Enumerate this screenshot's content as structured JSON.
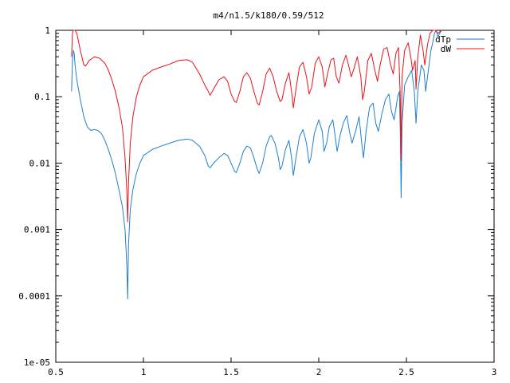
{
  "chart_data": {
    "type": "line",
    "title": "m4/n1.5/k180/0.59/512",
    "xlabel": "",
    "ylabel": "",
    "xlim": [
      0.5,
      3
    ],
    "ylim": [
      1e-05,
      1
    ],
    "yscale": "log",
    "grid": false,
    "legend_position": "top-right",
    "x_ticks": [
      0.5,
      1,
      1.5,
      2,
      2.5,
      3
    ],
    "x_tick_labels": [
      "0.5",
      "1",
      "1.5",
      "2",
      "2.5",
      "3"
    ],
    "y_ticks": [
      1e-05,
      0.0001,
      0.001,
      0.01,
      0.1,
      1
    ],
    "y_tick_labels": [
      "1e-05",
      "0.0001",
      "0.001",
      "0.01",
      "0.1",
      "1"
    ],
    "series": [
      {
        "name": "dTp",
        "color": "#1f7fce",
        "points": [
          [
            0.59,
            0.12
          ],
          [
            0.595,
            0.35
          ],
          [
            0.6,
            0.5
          ],
          [
            0.605,
            0.45
          ],
          [
            0.61,
            0.3
          ],
          [
            0.62,
            0.18
          ],
          [
            0.64,
            0.09
          ],
          [
            0.66,
            0.05
          ],
          [
            0.68,
            0.035
          ],
          [
            0.7,
            0.031
          ],
          [
            0.72,
            0.032
          ],
          [
            0.74,
            0.031
          ],
          [
            0.76,
            0.028
          ],
          [
            0.78,
            0.022
          ],
          [
            0.8,
            0.016
          ],
          [
            0.82,
            0.011
          ],
          [
            0.84,
            0.007
          ],
          [
            0.86,
            0.004
          ],
          [
            0.88,
            0.0022
          ],
          [
            0.895,
            0.001
          ],
          [
            0.905,
            0.0003
          ],
          [
            0.91,
            9e-05
          ],
          [
            0.915,
            0.0006
          ],
          [
            0.925,
            0.002
          ],
          [
            0.94,
            0.004
          ],
          [
            0.96,
            0.007
          ],
          [
            0.98,
            0.01
          ],
          [
            1.0,
            0.013
          ],
          [
            1.05,
            0.016
          ],
          [
            1.1,
            0.018
          ],
          [
            1.15,
            0.02
          ],
          [
            1.2,
            0.022
          ],
          [
            1.25,
            0.023
          ],
          [
            1.28,
            0.022
          ],
          [
            1.32,
            0.018
          ],
          [
            1.35,
            0.013
          ],
          [
            1.37,
            0.009
          ],
          [
            1.38,
            0.0085
          ],
          [
            1.4,
            0.01
          ],
          [
            1.43,
            0.012
          ],
          [
            1.46,
            0.014
          ],
          [
            1.48,
            0.013
          ],
          [
            1.5,
            0.01
          ],
          [
            1.52,
            0.0075
          ],
          [
            1.53,
            0.0072
          ],
          [
            1.55,
            0.01
          ],
          [
            1.57,
            0.015
          ],
          [
            1.59,
            0.018
          ],
          [
            1.61,
            0.017
          ],
          [
            1.63,
            0.012
          ],
          [
            1.65,
            0.008
          ],
          [
            1.66,
            0.007
          ],
          [
            1.68,
            0.01
          ],
          [
            1.7,
            0.018
          ],
          [
            1.72,
            0.025
          ],
          [
            1.73,
            0.026
          ],
          [
            1.75,
            0.02
          ],
          [
            1.77,
            0.012
          ],
          [
            1.78,
            0.008
          ],
          [
            1.79,
            0.009
          ],
          [
            1.81,
            0.016
          ],
          [
            1.83,
            0.022
          ],
          [
            1.845,
            0.012
          ],
          [
            1.855,
            0.0065
          ],
          [
            1.87,
            0.012
          ],
          [
            1.89,
            0.025
          ],
          [
            1.91,
            0.032
          ],
          [
            1.93,
            0.02
          ],
          [
            1.945,
            0.01
          ],
          [
            1.955,
            0.012
          ],
          [
            1.975,
            0.028
          ],
          [
            2.0,
            0.045
          ],
          [
            2.02,
            0.03
          ],
          [
            2.03,
            0.015
          ],
          [
            2.045,
            0.02
          ],
          [
            2.06,
            0.035
          ],
          [
            2.08,
            0.045
          ],
          [
            2.09,
            0.03
          ],
          [
            2.105,
            0.015
          ],
          [
            2.12,
            0.025
          ],
          [
            2.14,
            0.04
          ],
          [
            2.16,
            0.052
          ],
          [
            2.175,
            0.03
          ],
          [
            2.19,
            0.02
          ],
          [
            2.21,
            0.03
          ],
          [
            2.23,
            0.05
          ],
          [
            2.245,
            0.02
          ],
          [
            2.255,
            0.012
          ],
          [
            2.27,
            0.03
          ],
          [
            2.29,
            0.07
          ],
          [
            2.31,
            0.08
          ],
          [
            2.325,
            0.04
          ],
          [
            2.34,
            0.03
          ],
          [
            2.36,
            0.055
          ],
          [
            2.38,
            0.09
          ],
          [
            2.4,
            0.11
          ],
          [
            2.415,
            0.06
          ],
          [
            2.43,
            0.045
          ],
          [
            2.45,
            0.1
          ],
          [
            2.46,
            0.12
          ],
          [
            2.465,
            0.03
          ],
          [
            2.47,
            0.003
          ],
          [
            2.475,
            0.04
          ],
          [
            2.49,
            0.15
          ],
          [
            2.51,
            0.2
          ],
          [
            2.53,
            0.25
          ],
          [
            2.545,
            0.12
          ],
          [
            2.555,
            0.04
          ],
          [
            2.565,
            0.12
          ],
          [
            2.585,
            0.3
          ],
          [
            2.6,
            0.25
          ],
          [
            2.61,
            0.12
          ],
          [
            2.625,
            0.25
          ],
          [
            2.64,
            0.5
          ],
          [
            2.65,
            0.65
          ],
          [
            2.66,
            0.9
          ],
          [
            2.67,
            1.0
          ],
          [
            2.68,
            0.8
          ],
          [
            2.69,
            0.9
          ],
          [
            2.7,
            1.0
          ]
        ]
      },
      {
        "name": "dW",
        "color": "#e8121a",
        "points": [
          [
            0.59,
            0.4
          ],
          [
            0.595,
            0.9
          ],
          [
            0.6,
            1.0
          ],
          [
            0.61,
            1.0
          ],
          [
            0.62,
            0.9
          ],
          [
            0.64,
            0.5
          ],
          [
            0.66,
            0.3
          ],
          [
            0.67,
            0.29
          ],
          [
            0.69,
            0.35
          ],
          [
            0.72,
            0.4
          ],
          [
            0.75,
            0.38
          ],
          [
            0.78,
            0.32
          ],
          [
            0.8,
            0.25
          ],
          [
            0.82,
            0.18
          ],
          [
            0.84,
            0.12
          ],
          [
            0.86,
            0.07
          ],
          [
            0.88,
            0.035
          ],
          [
            0.895,
            0.012
          ],
          [
            0.905,
            0.004
          ],
          [
            0.91,
            0.0013
          ],
          [
            0.915,
            0.005
          ],
          [
            0.925,
            0.02
          ],
          [
            0.94,
            0.05
          ],
          [
            0.96,
            0.1
          ],
          [
            0.98,
            0.15
          ],
          [
            1.0,
            0.2
          ],
          [
            1.05,
            0.25
          ],
          [
            1.1,
            0.28
          ],
          [
            1.15,
            0.31
          ],
          [
            1.2,
            0.35
          ],
          [
            1.25,
            0.36
          ],
          [
            1.28,
            0.33
          ],
          [
            1.32,
            0.22
          ],
          [
            1.35,
            0.15
          ],
          [
            1.37,
            0.12
          ],
          [
            1.38,
            0.105
          ],
          [
            1.4,
            0.13
          ],
          [
            1.43,
            0.18
          ],
          [
            1.46,
            0.2
          ],
          [
            1.48,
            0.17
          ],
          [
            1.5,
            0.11
          ],
          [
            1.52,
            0.085
          ],
          [
            1.53,
            0.082
          ],
          [
            1.55,
            0.12
          ],
          [
            1.57,
            0.2
          ],
          [
            1.59,
            0.23
          ],
          [
            1.61,
            0.19
          ],
          [
            1.63,
            0.12
          ],
          [
            1.65,
            0.08
          ],
          [
            1.66,
            0.075
          ],
          [
            1.68,
            0.12
          ],
          [
            1.7,
            0.22
          ],
          [
            1.72,
            0.27
          ],
          [
            1.74,
            0.2
          ],
          [
            1.76,
            0.12
          ],
          [
            1.78,
            0.085
          ],
          [
            1.79,
            0.09
          ],
          [
            1.81,
            0.16
          ],
          [
            1.83,
            0.23
          ],
          [
            1.845,
            0.12
          ],
          [
            1.855,
            0.068
          ],
          [
            1.87,
            0.13
          ],
          [
            1.89,
            0.28
          ],
          [
            1.91,
            0.33
          ],
          [
            1.93,
            0.2
          ],
          [
            1.945,
            0.11
          ],
          [
            1.96,
            0.14
          ],
          [
            1.98,
            0.32
          ],
          [
            2.0,
            0.4
          ],
          [
            2.02,
            0.28
          ],
          [
            2.035,
            0.14
          ],
          [
            2.05,
            0.22
          ],
          [
            2.07,
            0.36
          ],
          [
            2.085,
            0.38
          ],
          [
            2.1,
            0.2
          ],
          [
            2.115,
            0.16
          ],
          [
            2.135,
            0.3
          ],
          [
            2.155,
            0.42
          ],
          [
            2.17,
            0.3
          ],
          [
            2.185,
            0.2
          ],
          [
            2.2,
            0.26
          ],
          [
            2.22,
            0.4
          ],
          [
            2.24,
            0.2
          ],
          [
            2.25,
            0.09
          ],
          [
            2.26,
            0.12
          ],
          [
            2.28,
            0.35
          ],
          [
            2.3,
            0.45
          ],
          [
            2.32,
            0.25
          ],
          [
            2.335,
            0.17
          ],
          [
            2.35,
            0.3
          ],
          [
            2.37,
            0.52
          ],
          [
            2.39,
            0.55
          ],
          [
            2.41,
            0.3
          ],
          [
            2.425,
            0.22
          ],
          [
            2.44,
            0.45
          ],
          [
            2.455,
            0.55
          ],
          [
            2.465,
            0.1
          ],
          [
            2.47,
            0.011
          ],
          [
            2.475,
            0.2
          ],
          [
            2.49,
            0.5
          ],
          [
            2.51,
            0.65
          ],
          [
            2.525,
            0.4
          ],
          [
            2.535,
            0.25
          ],
          [
            2.55,
            0.35
          ],
          [
            2.555,
            0.13
          ],
          [
            2.565,
            0.4
          ],
          [
            2.58,
            0.85
          ],
          [
            2.595,
            0.5
          ],
          [
            2.605,
            0.3
          ],
          [
            2.62,
            0.6
          ],
          [
            2.635,
            0.9
          ],
          [
            2.65,
            1.0
          ],
          [
            2.665,
            1.0
          ],
          [
            2.68,
            0.9
          ],
          [
            2.7,
            1.0
          ]
        ]
      }
    ]
  }
}
